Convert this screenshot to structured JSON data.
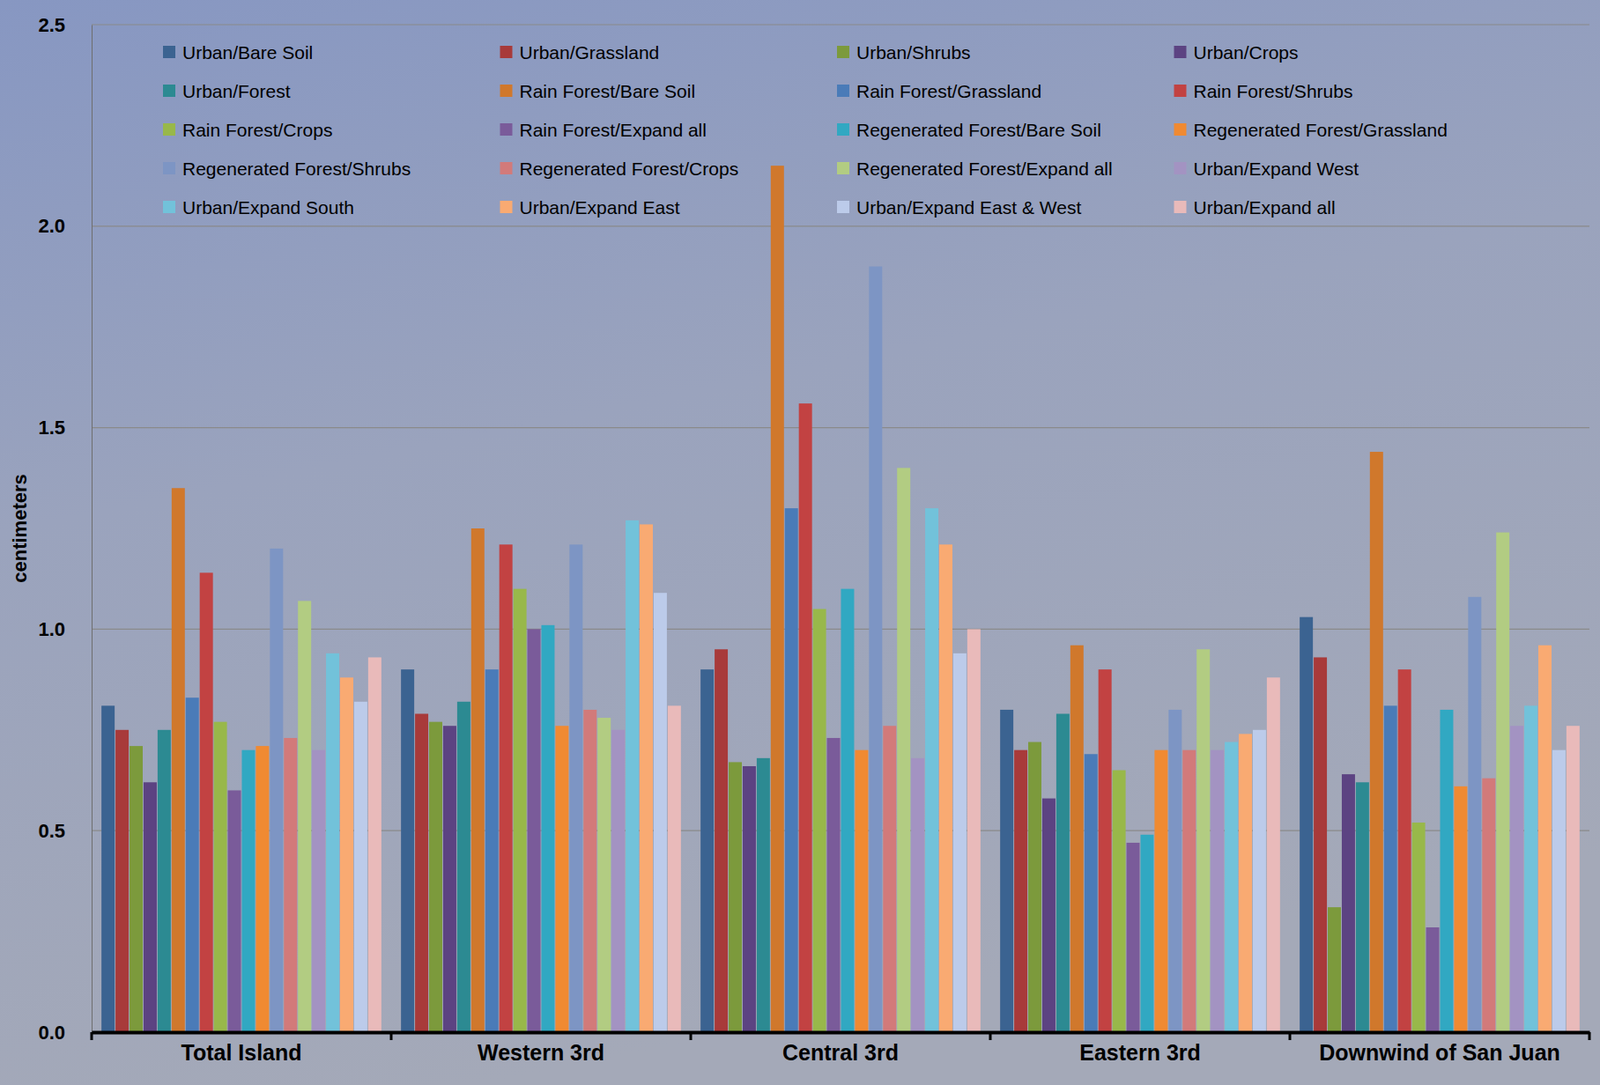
{
  "chart_data": {
    "type": "bar",
    "y_label": "centimeters",
    "categories": [
      "Total Island",
      "Western 3rd",
      "Central 3rd",
      "Eastern 3rd",
      "Downwind of San Juan"
    ],
    "ylim": [
      0,
      2.5
    ],
    "yticks": [
      {
        "value": 0,
        "label": "0.0"
      },
      0.5,
      {
        "value": 1,
        "label": "1.0"
      },
      1.5,
      {
        "value": 2,
        "label": "2.0"
      },
      2.5
    ],
    "grid": true,
    "legend": "top",
    "series": [
      {
        "name": "Urban/Bare Soil",
        "color": "#3b6391",
        "values": [
          0.81,
          0.9,
          0.9,
          0.8,
          1.03
        ]
      },
      {
        "name": "Urban/Grassland",
        "color": "#a83a3a",
        "values": [
          0.75,
          0.79,
          0.95,
          0.7,
          0.93
        ]
      },
      {
        "name": "Urban/Shrubs",
        "color": "#7c9a3c",
        "values": [
          0.71,
          0.77,
          0.67,
          0.72,
          0.31
        ]
      },
      {
        "name": "Urban/Crops",
        "color": "#5c4382",
        "values": [
          0.62,
          0.76,
          0.66,
          0.58,
          0.64
        ]
      },
      {
        "name": "Urban/Forest",
        "color": "#2c8a92",
        "values": [
          0.75,
          0.82,
          0.68,
          0.79,
          0.62
        ]
      },
      {
        "name": "Rain Forest/Bare Soil",
        "color": "#d0782c",
        "values": [
          1.35,
          1.25,
          2.15,
          0.96,
          1.44
        ]
      },
      {
        "name": "Rain Forest/Grassland",
        "color": "#4a7bb8",
        "values": [
          0.83,
          0.9,
          1.3,
          0.69,
          0.81
        ]
      },
      {
        "name": "Rain Forest/Shrubs",
        "color": "#c24242",
        "values": [
          1.14,
          1.21,
          1.56,
          0.9,
          0.9
        ]
      },
      {
        "name": "Rain Forest/Crops",
        "color": "#98b84a",
        "values": [
          0.77,
          1.1,
          1.05,
          0.65,
          0.52
        ]
      },
      {
        "name": "Rain Forest/Expand all",
        "color": "#7a5b9a",
        "values": [
          0.6,
          1.0,
          0.73,
          0.47,
          0.26
        ]
      },
      {
        "name": "Regenerated Forest/Bare Soil",
        "color": "#31a8c2",
        "values": [
          0.7,
          1.01,
          1.1,
          0.49,
          0.8
        ]
      },
      {
        "name": "Regenerated Forest/Grassland",
        "color": "#f08a32",
        "values": [
          0.71,
          0.76,
          0.7,
          0.7,
          0.61
        ]
      },
      {
        "name": "Regenerated Forest/Shrubs",
        "color": "#7d95c4",
        "values": [
          1.2,
          1.21,
          1.9,
          0.8,
          1.08
        ]
      },
      {
        "name": "Regenerated Forest/Crops",
        "color": "#d27a7a",
        "values": [
          0.73,
          0.8,
          0.76,
          0.7,
          0.63
        ]
      },
      {
        "name": "Regenerated Forest/Expand all",
        "color": "#b2cc82",
        "values": [
          1.07,
          0.78,
          1.4,
          0.95,
          1.24
        ]
      },
      {
        "name": "Urban/Expand West",
        "color": "#a393c2",
        "values": [
          0.7,
          0.75,
          0.68,
          0.7,
          0.76
        ]
      },
      {
        "name": "Urban/Expand South",
        "color": "#72c2da",
        "values": [
          0.94,
          1.27,
          1.3,
          0.72,
          0.81
        ]
      },
      {
        "name": "Urban/Expand East",
        "color": "#f9aa72",
        "values": [
          0.88,
          1.26,
          1.21,
          0.74,
          0.96
        ]
      },
      {
        "name": "Urban/Expand East & West",
        "color": "#bccbea",
        "values": [
          0.82,
          1.09,
          0.94,
          0.75,
          0.7
        ]
      },
      {
        "name": "Urban/Expand all",
        "color": "#e9baba",
        "values": [
          0.93,
          0.81,
          1.0,
          0.88,
          0.76
        ]
      }
    ]
  }
}
